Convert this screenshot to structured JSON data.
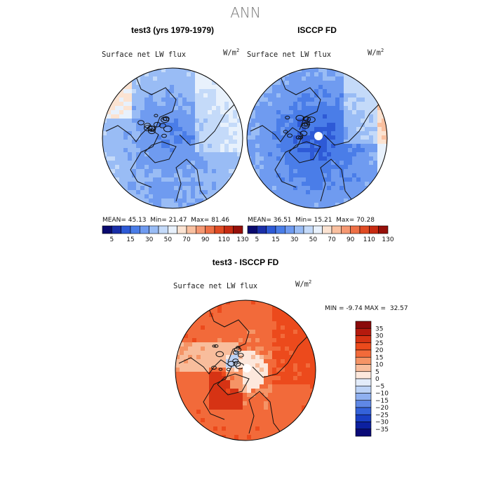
{
  "title": "ANN",
  "panels": [
    {
      "title": "test3 (yrs 1979-1979)",
      "variable": "Surface net LW flux",
      "units_base": "W/m",
      "units_exp": "2",
      "mean_label": "MEAN=",
      "mean": "45.13",
      "min_label": "Min=",
      "min": "21.47",
      "max_label": "Max=",
      "max": "81.46"
    },
    {
      "title": "ISCCP FD",
      "variable": "Surface net LW flux",
      "units_base": "W/m",
      "units_exp": "2",
      "mean_label": "MEAN=",
      "mean": "36.51",
      "min_label": "Min=",
      "min": "15.21",
      "max_label": "Max=",
      "max": "70.28"
    }
  ],
  "diff_panel": {
    "title": "test3 - ISCCP FD",
    "variable": "Surface net LW flux",
    "units_base": "W/m",
    "units_exp": "2",
    "min_label": "MIN =",
    "min": "-9.74",
    "max_label": "MAX =",
    "max": "32.57"
  },
  "chart_data": [
    {
      "type": "heatmap",
      "projection": "north polar stereographic",
      "title": "test3 (yrs 1979-1979)",
      "variable": "Surface net LW flux",
      "units": "W/m^2",
      "mean": 45.13,
      "min": 21.47,
      "max": 81.46,
      "colorbar": {
        "tick_labels": [
          "5",
          "15",
          "30",
          "50",
          "70",
          "90",
          "110",
          "130"
        ],
        "colors": [
          "#0a0a6e",
          "#1a2fa8",
          "#2e5ad6",
          "#4a7de8",
          "#6f9bf0",
          "#99bcf5",
          "#c4daf9",
          "#e8f1fc",
          "#fbe3d2",
          "#f9c0a0",
          "#f59872",
          "#ee7046",
          "#e04b23",
          "#c72b12",
          "#96100a"
        ]
      }
    },
    {
      "type": "heatmap",
      "projection": "north polar stereographic",
      "title": "ISCCP FD",
      "variable": "Surface net LW flux",
      "units": "W/m^2",
      "mean": 36.51,
      "min": 15.21,
      "max": 70.28,
      "colorbar": {
        "tick_labels": [
          "5",
          "15",
          "30",
          "50",
          "70",
          "90",
          "110",
          "130"
        ],
        "colors": [
          "#0a0a6e",
          "#1a2fa8",
          "#2e5ad6",
          "#4a7de8",
          "#6f9bf0",
          "#99bcf5",
          "#c4daf9",
          "#e8f1fc",
          "#fbe3d2",
          "#f9c0a0",
          "#f59872",
          "#ee7046",
          "#e04b23",
          "#c72b12",
          "#96100a"
        ]
      }
    },
    {
      "type": "heatmap",
      "projection": "north polar stereographic",
      "title": "test3 - ISCCP FD",
      "variable": "Surface net LW flux",
      "units": "W/m^2",
      "min": -9.74,
      "max": 32.57,
      "colorbar": {
        "tick_labels": [
          "35",
          "30",
          "25",
          "20",
          "15",
          "10",
          "5",
          "0",
          "−5",
          "−10",
          "−15",
          "−20",
          "−25",
          "−30",
          "−35"
        ],
        "colors": [
          "#8a0a0a",
          "#b51a0e",
          "#d63314",
          "#ec4a1c",
          "#f26a3a",
          "#f59466",
          "#f8bd9c",
          "#fde8dc",
          "#e3ecfa",
          "#bcd2f6",
          "#8fb0f0",
          "#5f88e6",
          "#3462da",
          "#1a3fc4",
          "#0c20a0",
          "#0a0a78"
        ]
      }
    }
  ]
}
